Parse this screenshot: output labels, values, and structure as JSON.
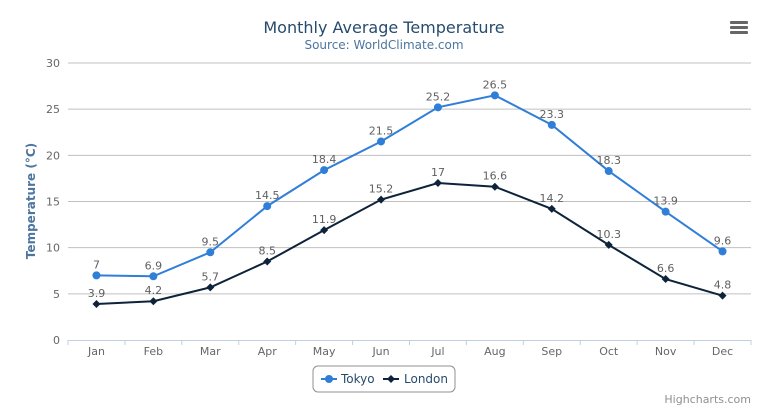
{
  "chart_data": {
    "type": "line",
    "title": "Monthly Average Temperature",
    "subtitle": "Source: WorldClimate.com",
    "categories": [
      "Jan",
      "Feb",
      "Mar",
      "Apr",
      "May",
      "Jun",
      "Jul",
      "Aug",
      "Sep",
      "Oct",
      "Nov",
      "Dec"
    ],
    "ylabel": "Temperature (°C)",
    "ylim": [
      0,
      30
    ],
    "yticks": [
      0,
      5,
      10,
      15,
      20,
      25,
      30
    ],
    "grid": true,
    "legend": "bottom-center",
    "series": [
      {
        "name": "Tokyo",
        "color": "#2f7ed8",
        "marker": "circle",
        "values": [
          7.0,
          6.9,
          9.5,
          14.5,
          18.4,
          21.5,
          25.2,
          26.5,
          23.3,
          18.3,
          13.9,
          9.6
        ]
      },
      {
        "name": "London",
        "color": "#0d233a",
        "marker": "diamond",
        "values": [
          3.9,
          4.2,
          5.7,
          8.5,
          11.9,
          15.2,
          17.0,
          16.6,
          14.2,
          10.3,
          6.6,
          4.8
        ]
      }
    ]
  },
  "credits": "Highcharts.com",
  "menu_icon": "hamburger-menu-icon"
}
